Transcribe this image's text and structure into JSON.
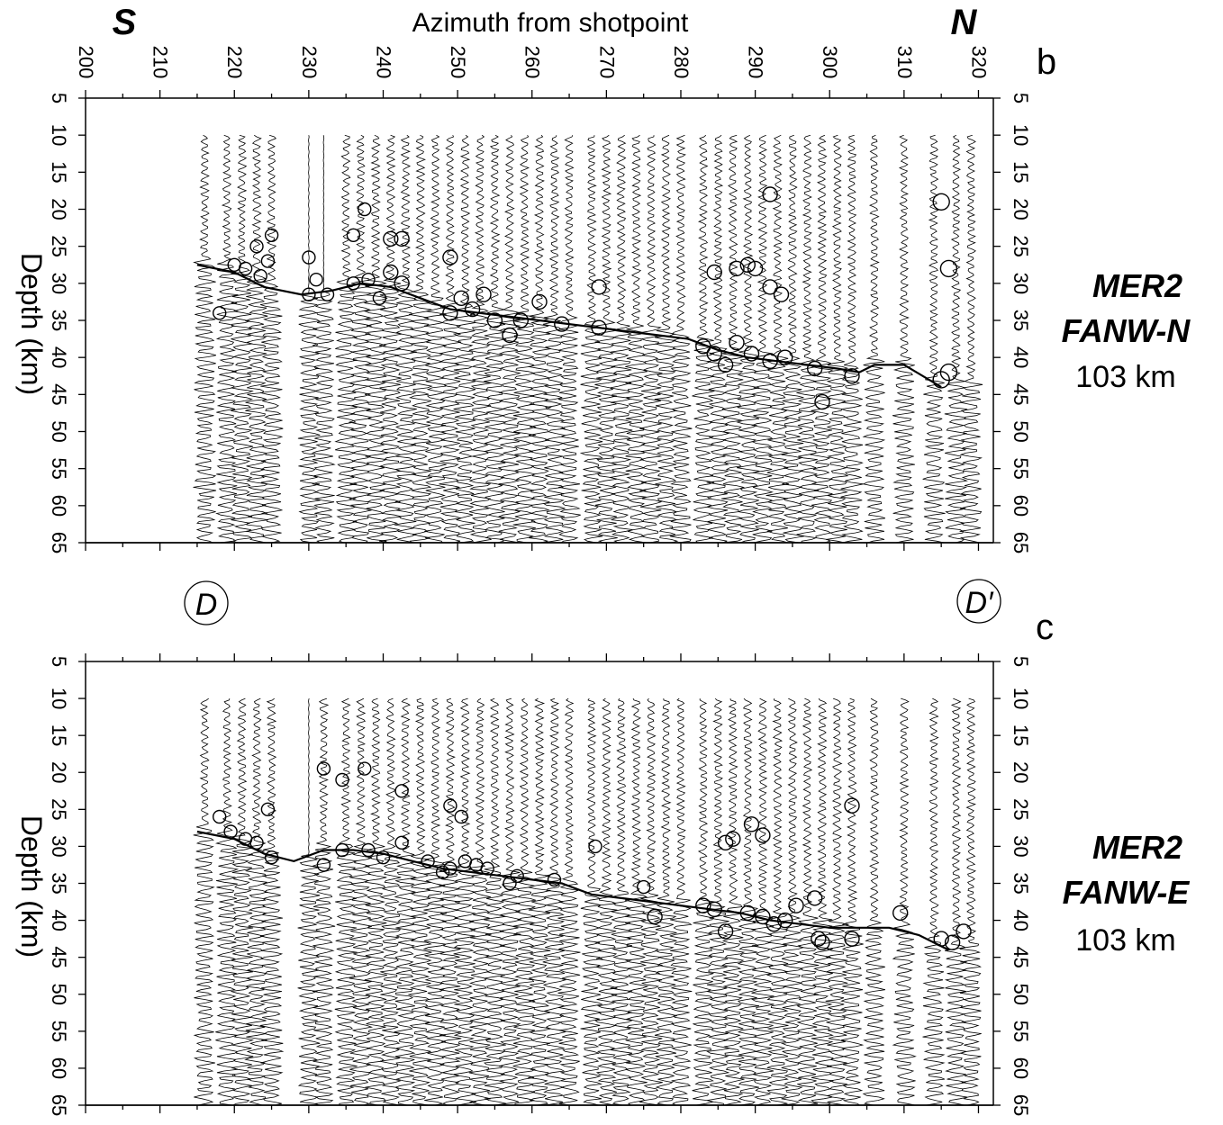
{
  "figure": {
    "x_axis_title": "Azimuth from shotpoint",
    "left_end_label": "S",
    "right_end_label": "N",
    "x_ticks": [
      "200",
      "210",
      "220",
      "230",
      "240",
      "250",
      "260",
      "270",
      "280",
      "290",
      "300",
      "310",
      "320"
    ],
    "y_ticks": [
      "5",
      "10",
      "15",
      "20",
      "25",
      "30",
      "35",
      "40",
      "45",
      "50",
      "55",
      "60",
      "65"
    ],
    "profile_start_label": "D",
    "profile_end_label": "D′"
  },
  "chart_data": [
    {
      "type": "line",
      "panel": "b",
      "ylabel": "Depth (km)",
      "xlim": [
        200,
        322
      ],
      "ylim": [
        5,
        65
      ],
      "y_inverted": true,
      "station_line": "MER2",
      "component": "FANW-N",
      "offset": "103 km",
      "trace_azimuths": [
        216,
        219,
        221,
        223,
        225,
        230,
        232,
        235,
        237,
        239,
        241,
        243,
        245,
        247,
        249,
        251,
        253,
        255,
        257,
        259,
        261,
        263,
        265,
        268,
        270,
        272,
        274,
        276,
        278,
        280,
        283,
        285,
        287,
        289,
        291,
        293,
        295,
        297,
        299,
        301,
        303,
        306,
        310,
        314,
        317,
        319
      ],
      "moho_pick": {
        "x": [
          215,
          220,
          224,
          229,
          233,
          237,
          241,
          245,
          249,
          253,
          257,
          261,
          265,
          269,
          273,
          277,
          281,
          285,
          289,
          293,
          297,
          301,
          304,
          306,
          310,
          315
        ],
        "y": [
          27.5,
          28.5,
          30.5,
          31.5,
          31,
          30,
          30.5,
          32,
          33.5,
          34,
          34.5,
          35,
          35.5,
          36,
          36.5,
          37,
          37.5,
          39,
          40,
          40.5,
          41,
          41.5,
          42,
          41,
          41,
          44
        ]
      },
      "circles": [
        {
          "az": 218,
          "depth": 34
        },
        {
          "az": 220,
          "depth": 27.5
        },
        {
          "az": 221.5,
          "depth": 28
        },
        {
          "az": 223,
          "depth": 25
        },
        {
          "az": 223.5,
          "depth": 29
        },
        {
          "az": 224.5,
          "depth": 27
        },
        {
          "az": 225,
          "depth": 23.5
        },
        {
          "az": 230,
          "depth": 26.5
        },
        {
          "az": 230,
          "depth": 31.5
        },
        {
          "az": 231,
          "depth": 29.5
        },
        {
          "az": 232.5,
          "depth": 31.5
        },
        {
          "az": 236,
          "depth": 23.5
        },
        {
          "az": 236,
          "depth": 30
        },
        {
          "az": 237.5,
          "depth": 20
        },
        {
          "az": 238,
          "depth": 29.5
        },
        {
          "az": 239.5,
          "depth": 32
        },
        {
          "az": 241,
          "depth": 24
        },
        {
          "az": 241,
          "depth": 28.5
        },
        {
          "az": 242.5,
          "depth": 24
        },
        {
          "az": 242.5,
          "depth": 30
        },
        {
          "az": 249,
          "depth": 26.5
        },
        {
          "az": 249,
          "depth": 34
        },
        {
          "az": 250.5,
          "depth": 32
        },
        {
          "az": 252,
          "depth": 33.5
        },
        {
          "az": 253.5,
          "depth": 31.5
        },
        {
          "az": 255,
          "depth": 35
        },
        {
          "az": 257,
          "depth": 37
        },
        {
          "az": 258.5,
          "depth": 35
        },
        {
          "az": 261,
          "depth": 32.5
        },
        {
          "az": 264,
          "depth": 35.5
        },
        {
          "az": 269,
          "depth": 30.5
        },
        {
          "az": 269,
          "depth": 36
        },
        {
          "az": 283,
          "depth": 38.5
        },
        {
          "az": 284.5,
          "depth": 28.5
        },
        {
          "az": 284.5,
          "depth": 39.5
        },
        {
          "az": 286,
          "depth": 41
        },
        {
          "az": 287.5,
          "depth": 28
        },
        {
          "az": 287.5,
          "depth": 38
        },
        {
          "az": 289,
          "depth": 27.5
        },
        {
          "az": 290,
          "depth": 28
        },
        {
          "az": 289.5,
          "depth": 39.5
        },
        {
          "az": 292,
          "depth": 18
        },
        {
          "az": 292,
          "depth": 30.5
        },
        {
          "az": 292,
          "depth": 40.5
        },
        {
          "az": 293.5,
          "depth": 31.5
        },
        {
          "az": 294,
          "depth": 40
        },
        {
          "az": 298,
          "depth": 41.5
        },
        {
          "az": 299,
          "depth": 46
        },
        {
          "az": 303,
          "depth": 42.5
        },
        {
          "az": 315,
          "depth": 19
        },
        {
          "az": 315,
          "depth": 43
        },
        {
          "az": 316,
          "depth": 28
        },
        {
          "az": 316,
          "depth": 42
        }
      ]
    },
    {
      "type": "line",
      "panel": "c",
      "ylabel": "Depth (km)",
      "xlim": [
        200,
        322
      ],
      "ylim": [
        5,
        65
      ],
      "y_inverted": true,
      "station_line": "MER2",
      "component": "FANW-E",
      "offset": "103 km",
      "trace_azimuths": [
        216,
        219,
        221,
        223,
        225,
        230,
        232,
        235,
        237,
        239,
        241,
        243,
        245,
        247,
        249,
        251,
        253,
        255,
        257,
        259,
        261,
        263,
        265,
        268,
        270,
        272,
        274,
        276,
        278,
        280,
        283,
        285,
        287,
        289,
        291,
        293,
        295,
        297,
        299,
        301,
        303,
        306,
        310,
        314,
        317,
        319
      ],
      "moho_pick": {
        "x": [
          215,
          220,
          224,
          228,
          232,
          236,
          240,
          244,
          248,
          252,
          256,
          260,
          264,
          268,
          272,
          276,
          280,
          284,
          288,
          292,
          296,
          300,
          304,
          308,
          312,
          316
        ],
        "y": [
          28,
          29,
          31,
          32,
          30.5,
          30.5,
          31,
          32,
          33,
          33.5,
          34,
          34.5,
          35,
          36.5,
          37,
          37.5,
          38,
          38.5,
          39,
          40,
          40.5,
          41,
          41,
          41,
          42,
          44
        ]
      },
      "circles": [
        {
          "az": 218,
          "depth": 26
        },
        {
          "az": 219.5,
          "depth": 28
        },
        {
          "az": 221.5,
          "depth": 29
        },
        {
          "az": 223,
          "depth": 29.5
        },
        {
          "az": 224.5,
          "depth": 25
        },
        {
          "az": 225,
          "depth": 31.5
        },
        {
          "az": 232,
          "depth": 19.5
        },
        {
          "az": 232,
          "depth": 32.5
        },
        {
          "az": 234.5,
          "depth": 21
        },
        {
          "az": 234.5,
          "depth": 30.5
        },
        {
          "az": 237.5,
          "depth": 19.5
        },
        {
          "az": 238,
          "depth": 30.5
        },
        {
          "az": 240,
          "depth": 31.5
        },
        {
          "az": 242.5,
          "depth": 22.5
        },
        {
          "az": 242.5,
          "depth": 29.5
        },
        {
          "az": 246,
          "depth": 32
        },
        {
          "az": 248,
          "depth": 33.5
        },
        {
          "az": 249,
          "depth": 24.5
        },
        {
          "az": 249,
          "depth": 33
        },
        {
          "az": 250.5,
          "depth": 26
        },
        {
          "az": 251,
          "depth": 32
        },
        {
          "az": 252.5,
          "depth": 32.5
        },
        {
          "az": 254,
          "depth": 33
        },
        {
          "az": 257,
          "depth": 35
        },
        {
          "az": 258,
          "depth": 34
        },
        {
          "az": 263,
          "depth": 34.5
        },
        {
          "az": 268.5,
          "depth": 30
        },
        {
          "az": 275,
          "depth": 35.5
        },
        {
          "az": 276.5,
          "depth": 39.5
        },
        {
          "az": 283,
          "depth": 38
        },
        {
          "az": 284.5,
          "depth": 38.5
        },
        {
          "az": 286,
          "depth": 29.5
        },
        {
          "az": 286,
          "depth": 41.5
        },
        {
          "az": 287,
          "depth": 29
        },
        {
          "az": 289,
          "depth": 39
        },
        {
          "az": 289.5,
          "depth": 27
        },
        {
          "az": 291,
          "depth": 28.5
        },
        {
          "az": 291,
          "depth": 39.5
        },
        {
          "az": 292.5,
          "depth": 40.5
        },
        {
          "az": 294,
          "depth": 40
        },
        {
          "az": 295.5,
          "depth": 38
        },
        {
          "az": 298,
          "depth": 37
        },
        {
          "az": 298.5,
          "depth": 42.5
        },
        {
          "az": 299,
          "depth": 43
        },
        {
          "az": 303,
          "depth": 24.5
        },
        {
          "az": 303,
          "depth": 42.5
        },
        {
          "az": 309.5,
          "depth": 39
        },
        {
          "az": 315,
          "depth": 42.5
        },
        {
          "az": 316.5,
          "depth": 43
        },
        {
          "az": 318,
          "depth": 41.5
        }
      ]
    }
  ]
}
